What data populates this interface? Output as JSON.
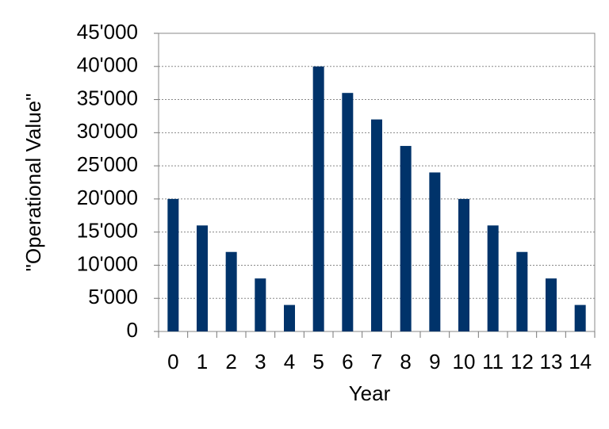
{
  "chart_data": {
    "type": "bar",
    "y_label": "\"Operational Value\"",
    "x_label": "Year",
    "categories": [
      "0",
      "1",
      "2",
      "3",
      "4",
      "5",
      "6",
      "7",
      "8",
      "9",
      "10",
      "11",
      "12",
      "13",
      "14"
    ],
    "values": [
      20000,
      16000,
      12000,
      8000,
      4000,
      40000,
      36000,
      32000,
      28000,
      24000,
      20000,
      16000,
      12000,
      8000,
      4000
    ],
    "color": "#00336a",
    "ylim": [
      0,
      45000
    ],
    "yticks": [
      0,
      {
        "value": 5000,
        "label": "5'000"
      },
      {
        "value": 10000,
        "label": "10'000"
      },
      {
        "value": 15000,
        "label": "15'000"
      },
      {
        "value": 20000,
        "label": "20'000"
      },
      {
        "value": 25000,
        "label": "25'000"
      },
      {
        "value": 30000,
        "label": "30'000"
      },
      {
        "value": 35000,
        "label": "35'000"
      },
      {
        "value": 40000,
        "label": "40'000"
      },
      {
        "value": 45000,
        "label": "45'000"
      }
    ],
    "grid": true
  }
}
